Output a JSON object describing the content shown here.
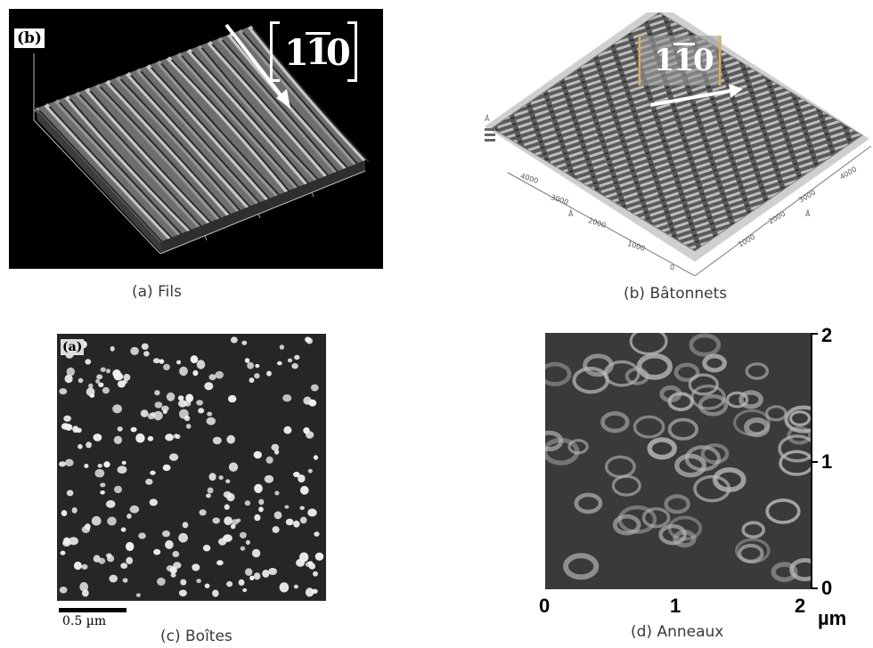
{
  "panels": [
    {
      "id": "a",
      "inset_label": "(b)",
      "direction_label": "[1̄1̄0]",
      "direction_main": "1",
      "direction_bar": "1",
      "direction_end": "0",
      "caption": "(a) Fils"
    },
    {
      "id": "b",
      "direction_main": "1",
      "direction_bar": "1",
      "direction_end": "0",
      "caption": "(b) Bâtonnets",
      "ticks_left": [
        "4000",
        "3000",
        "2000",
        "1000",
        "0"
      ],
      "ticks_right": [
        "4000",
        "3000",
        "2000",
        "1000"
      ],
      "axis_unit": "Å"
    },
    {
      "id": "c",
      "inset_label": "(a)",
      "scale_bar_label": "0.5 µm",
      "caption": "(c) Boîtes"
    },
    {
      "id": "d",
      "caption": "(d) Anneaux",
      "x_ticks": [
        "0",
        "1",
        "2"
      ],
      "y_ticks": [
        "2",
        "1",
        "0"
      ],
      "unit": "µm"
    }
  ],
  "colors": {
    "background": "#ffffff",
    "caption_text": "#3a3a3a",
    "afm_dark": "#1a1a1a"
  }
}
